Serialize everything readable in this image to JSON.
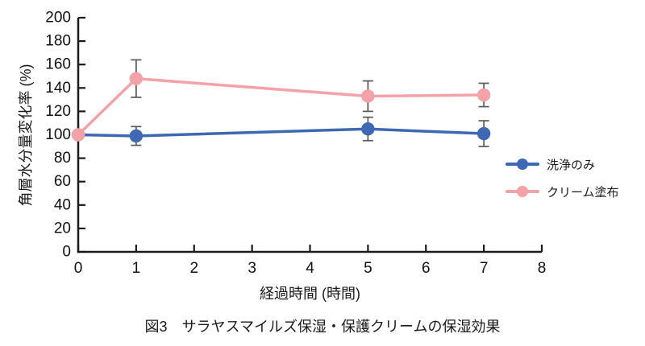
{
  "figure": {
    "caption": "図3　サラヤスマイルズ保湿・保護クリームの保湿効果"
  },
  "chart_data": {
    "type": "line",
    "title": "",
    "xlabel": "経過時間 (時間)",
    "ylabel": "角層水分量変化率 (%)",
    "x": [
      0,
      1,
      5,
      7
    ],
    "x_ticks": [
      0,
      1,
      2,
      3,
      4,
      5,
      6,
      7,
      8
    ],
    "y_ticks": [
      0,
      20,
      40,
      60,
      80,
      100,
      120,
      140,
      160,
      180,
      200
    ],
    "xlim": [
      0,
      8
    ],
    "ylim": [
      0,
      200
    ],
    "grid": false,
    "legend_position": "right-middle",
    "axis_color": "#1a1a1a",
    "error_bar_color": "#595959",
    "series": [
      {
        "name": "洗浄のみ",
        "color": "#3E68B3",
        "values": [
          100,
          99,
          105,
          101
        ],
        "errors": [
          null,
          8,
          10,
          11
        ]
      },
      {
        "name": "クリーム塗布",
        "color": "#F4A2A8",
        "values": [
          100,
          148,
          133,
          134
        ],
        "errors": [
          null,
          16,
          13,
          10
        ]
      }
    ]
  }
}
